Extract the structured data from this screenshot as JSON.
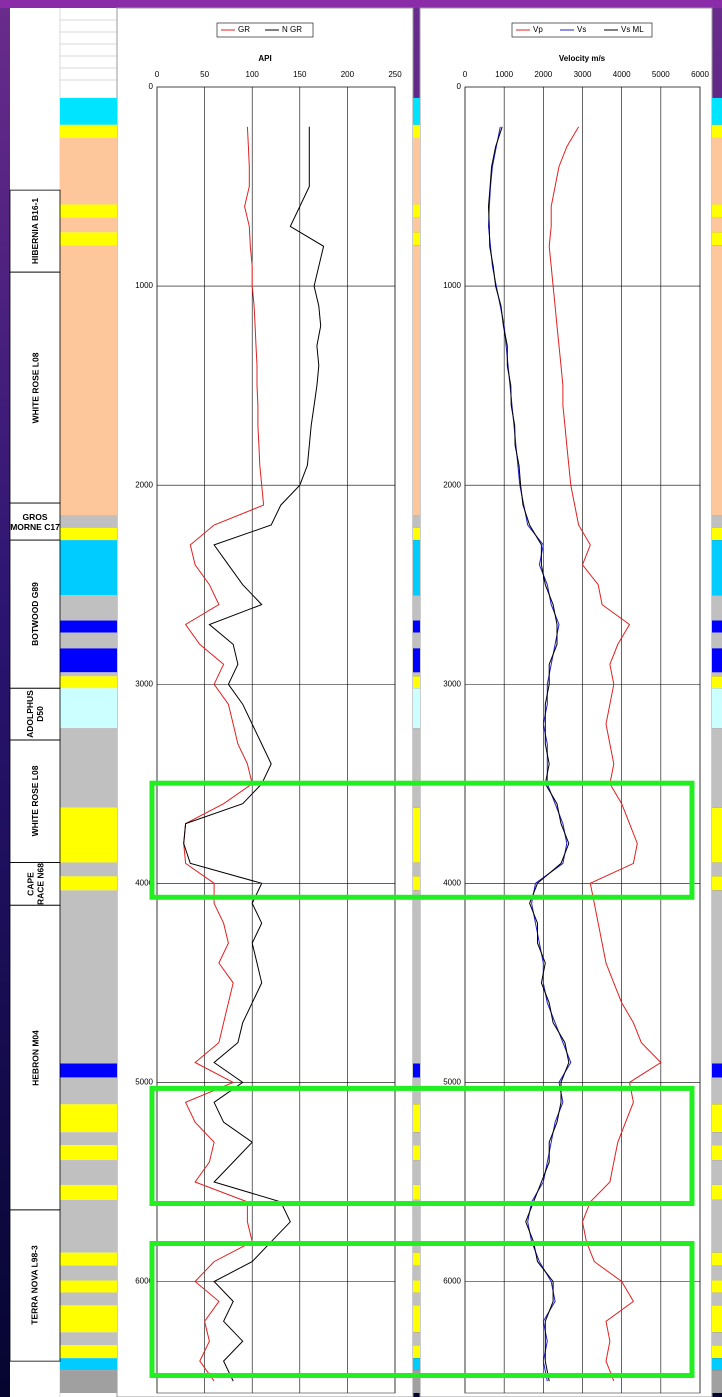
{
  "formations": [
    {
      "label": "HIBERNIA B16-1",
      "top": 518,
      "base": 930,
      "rotated": true
    },
    {
      "label": "WHITE ROSE L08",
      "top": 930,
      "base": 2090,
      "rotated": true
    },
    {
      "label": "GROS MORNE C17",
      "top": 2090,
      "base": 2276,
      "rotated": false
    },
    {
      "label": "BOTWOOD G89",
      "top": 2276,
      "base": 3020,
      "rotated": true
    },
    {
      "label": "ADOLPHUS D50",
      "top": 3020,
      "base": 3280,
      "rotated": true
    },
    {
      "label": "WHITE ROSE L08",
      "top": 3280,
      "base": 3895,
      "rotated": true
    },
    {
      "label": "CAPE RACE N68",
      "top": 3895,
      "base": 4110,
      "rotated": true
    },
    {
      "label": "HEBRON M04",
      "top": 4110,
      "base": 5640,
      "rotated": true
    },
    {
      "label": "TERRA NOVA L98-3",
      "top": 5640,
      "base": 6400,
      "rotated": true
    }
  ],
  "lithology": [
    {
      "top": 55,
      "base": 190,
      "color": "#00e5ff"
    },
    {
      "top": 190,
      "base": 256,
      "color": "#ffff00"
    },
    {
      "top": 256,
      "base": 590,
      "color": "#fdc79b"
    },
    {
      "top": 590,
      "base": 656,
      "color": "#ffff00"
    },
    {
      "top": 656,
      "base": 730,
      "color": "#fdc79b"
    },
    {
      "top": 730,
      "base": 795,
      "color": "#ffff00"
    },
    {
      "top": 795,
      "base": 2150,
      "color": "#fdc79b"
    },
    {
      "top": 2150,
      "base": 2215,
      "color": "#c0c0c0"
    },
    {
      "top": 2215,
      "base": 2276,
      "color": "#ffff00"
    },
    {
      "top": 2276,
      "base": 2553,
      "color": "#00ccff"
    },
    {
      "top": 2553,
      "base": 2680,
      "color": "#c0c0c0"
    },
    {
      "top": 2680,
      "base": 2740,
      "color": "#0000ff"
    },
    {
      "top": 2740,
      "base": 2820,
      "color": "#c0c0c0"
    },
    {
      "top": 2820,
      "base": 2940,
      "color": "#0000ff"
    },
    {
      "top": 2940,
      "base": 2960,
      "color": "#c0c0c0"
    },
    {
      "top": 2960,
      "base": 3020,
      "color": "#ffff00"
    },
    {
      "top": 3020,
      "base": 3220,
      "color": "#ccffff"
    },
    {
      "top": 3220,
      "base": 3620,
      "color": "#c0c0c0"
    },
    {
      "top": 3620,
      "base": 3895,
      "color": "#ffff00"
    },
    {
      "top": 3895,
      "base": 3965,
      "color": "#c0c0c0"
    },
    {
      "top": 3965,
      "base": 4035,
      "color": "#ffff00"
    },
    {
      "top": 4035,
      "base": 4905,
      "color": "#c0c0c0"
    },
    {
      "top": 4905,
      "base": 4975,
      "color": "#0000ff"
    },
    {
      "top": 4975,
      "base": 5110,
      "color": "#c0c0c0"
    },
    {
      "top": 5110,
      "base": 5250,
      "color": "#ffff00"
    },
    {
      "top": 5250,
      "base": 5315,
      "color": "#c0c0c0"
    },
    {
      "top": 5315,
      "base": 5390,
      "color": "#ffff00"
    },
    {
      "top": 5390,
      "base": 5515,
      "color": "#c0c0c0"
    },
    {
      "top": 5515,
      "base": 5590,
      "color": "#ffff00"
    },
    {
      "top": 5590,
      "base": 5855,
      "color": "#c0c0c0"
    },
    {
      "top": 5855,
      "base": 5920,
      "color": "#ffff00"
    },
    {
      "top": 5920,
      "base": 5995,
      "color": "#c0c0c0"
    },
    {
      "top": 5995,
      "base": 6055,
      "color": "#ffff00"
    },
    {
      "top": 6055,
      "base": 6120,
      "color": "#c0c0c0"
    },
    {
      "top": 6120,
      "base": 6255,
      "color": "#ffff00"
    },
    {
      "top": 6255,
      "base": 6320,
      "color": "#c0c0c0"
    },
    {
      "top": 6320,
      "base": 6385,
      "color": "#ffff00"
    },
    {
      "top": 6385,
      "base": 6445,
      "color": "#00ccff"
    },
    {
      "top": 6445,
      "base": 6560,
      "color": "#a0a0a0"
    }
  ],
  "highlights": [
    {
      "top": 3497,
      "base": 4070,
      "color": "#22ee22"
    },
    {
      "top": 5030,
      "base": 5608,
      "color": "#22ee22"
    },
    {
      "top": 5809,
      "base": 6472,
      "color": "#22ee22"
    }
  ],
  "chart_data": [
    {
      "type": "line",
      "xlabel": "API",
      "xlim": [
        0,
        250
      ],
      "xticks": [
        0,
        50,
        100,
        150,
        200,
        250
      ],
      "ylim": [
        0,
        6560
      ],
      "yticks": [
        0,
        1000,
        2000,
        3000,
        4000,
        5000,
        6000
      ],
      "grid": true,
      "legend": "top",
      "depth": [
        200,
        300,
        400,
        500,
        600,
        700,
        800,
        900,
        1000,
        1100,
        1200,
        1300,
        1400,
        1500,
        1600,
        1700,
        1800,
        1900,
        2000,
        2100,
        2200,
        2300,
        2400,
        2500,
        2600,
        2700,
        2800,
        2900,
        3000,
        3100,
        3200,
        3300,
        3400,
        3500,
        3600,
        3700,
        3800,
        3900,
        4000,
        4100,
        4200,
        4300,
        4400,
        4500,
        4600,
        4700,
        4800,
        4900,
        5000,
        5100,
        5200,
        5300,
        5400,
        5500,
        5600,
        5700,
        5800,
        5900,
        6000,
        6100,
        6200,
        6300,
        6400,
        6500
      ],
      "series": [
        {
          "name": "GR",
          "color": "#e02020",
          "values": [
            95,
            96,
            97,
            97,
            92,
            97,
            98,
            100,
            100,
            102,
            103,
            104,
            105,
            105,
            106,
            106,
            107,
            108,
            110,
            112,
            60,
            35,
            40,
            55,
            65,
            30,
            45,
            70,
            60,
            75,
            80,
            85,
            95,
            100,
            70,
            30,
            28,
            30,
            60,
            60,
            70,
            75,
            65,
            80,
            75,
            70,
            65,
            40,
            80,
            30,
            40,
            60,
            55,
            40,
            95,
            95,
            100,
            60,
            40,
            65,
            50,
            55,
            45,
            60
          ]
        },
        {
          "name": "N GR",
          "color": "#000000",
          "values": [
            160,
            160,
            160,
            160,
            150,
            140,
            175,
            170,
            165,
            170,
            172,
            168,
            170,
            168,
            165,
            162,
            160,
            158,
            150,
            130,
            120,
            60,
            75,
            90,
            110,
            55,
            80,
            85,
            75,
            90,
            100,
            110,
            120,
            110,
            90,
            30,
            28,
            35,
            110,
            100,
            110,
            100,
            105,
            110,
            100,
            90,
            85,
            60,
            90,
            60,
            70,
            100,
            80,
            60,
            130,
            140,
            120,
            100,
            60,
            80,
            70,
            90,
            70,
            80
          ]
        }
      ]
    },
    {
      "type": "line",
      "xlabel": "Velocity m/s",
      "xlim": [
        0,
        6000
      ],
      "xticks": [
        0,
        1000,
        2000,
        3000,
        4000,
        5000,
        6000
      ],
      "ylim": [
        0,
        6560
      ],
      "yticks": [
        0,
        1000,
        2000,
        3000,
        4000,
        5000,
        6000
      ],
      "grid": true,
      "legend": "top",
      "depth": [
        200,
        300,
        400,
        500,
        600,
        700,
        800,
        900,
        1000,
        1100,
        1200,
        1300,
        1400,
        1500,
        1600,
        1700,
        1800,
        1900,
        2000,
        2100,
        2200,
        2300,
        2400,
        2500,
        2600,
        2700,
        2800,
        2900,
        3000,
        3100,
        3200,
        3300,
        3400,
        3500,
        3600,
        3700,
        3800,
        3900,
        4000,
        4100,
        4200,
        4300,
        4400,
        4500,
        4600,
        4700,
        4800,
        4900,
        5000,
        5100,
        5200,
        5300,
        5400,
        5500,
        5600,
        5700,
        5800,
        5900,
        6000,
        6100,
        6200,
        6300,
        6400,
        6500
      ],
      "series": [
        {
          "name": "Vp",
          "color": "#e02020",
          "values": [
            2900,
            2600,
            2400,
            2300,
            2200,
            2200,
            2150,
            2200,
            2250,
            2300,
            2350,
            2400,
            2450,
            2500,
            2500,
            2550,
            2600,
            2650,
            2700,
            2800,
            2900,
            3200,
            3000,
            3400,
            3500,
            4200,
            3900,
            3700,
            3800,
            3700,
            3600,
            3700,
            3800,
            3700,
            4000,
            4200,
            4400,
            4300,
            3200,
            3300,
            3400,
            3500,
            3600,
            3800,
            4000,
            4300,
            4500,
            5000,
            4200,
            4300,
            4100,
            3900,
            3800,
            3700,
            3200,
            3000,
            3100,
            3300,
            4000,
            4300,
            3600,
            3700,
            3600,
            3800
          ]
        },
        {
          "name": "Vs",
          "color": "#2020d0",
          "values": [
            900,
            800,
            700,
            650,
            620,
            600,
            650,
            700,
            800,
            900,
            1000,
            1050,
            1100,
            1150,
            1200,
            1250,
            1300,
            1350,
            1400,
            1500,
            1600,
            2000,
            1900,
            2100,
            2200,
            2400,
            2300,
            2200,
            2100,
            2100,
            2000,
            2100,
            2100,
            2100,
            2300,
            2500,
            2600,
            2500,
            1800,
            1700,
            1800,
            1900,
            2000,
            2000,
            2100,
            2300,
            2500,
            2700,
            2400,
            2500,
            2300,
            2200,
            2100,
            2000,
            1700,
            1600,
            1700,
            1900,
            2200,
            2300,
            2000,
            2100,
            2000,
            2100
          ]
        },
        {
          "name": "Vs ML",
          "color": "#000000",
          "values": [
            950,
            780,
            680,
            640,
            600,
            620,
            630,
            720,
            780,
            920,
            980,
            1080,
            1080,
            1170,
            1180,
            1270,
            1280,
            1380,
            1420,
            1480,
            1650,
            1950,
            1950,
            2050,
            2250,
            2350,
            2350,
            2150,
            2150,
            2050,
            2050,
            2050,
            2150,
            2050,
            2350,
            2450,
            2650,
            2450,
            1850,
            1650,
            1850,
            1850,
            2050,
            1950,
            2150,
            2250,
            2550,
            2650,
            2450,
            2450,
            2350,
            2150,
            2150,
            1950,
            1750,
            1550,
            1750,
            1850,
            2250,
            2250,
            2050,
            2050,
            2050,
            2150
          ]
        }
      ]
    }
  ]
}
